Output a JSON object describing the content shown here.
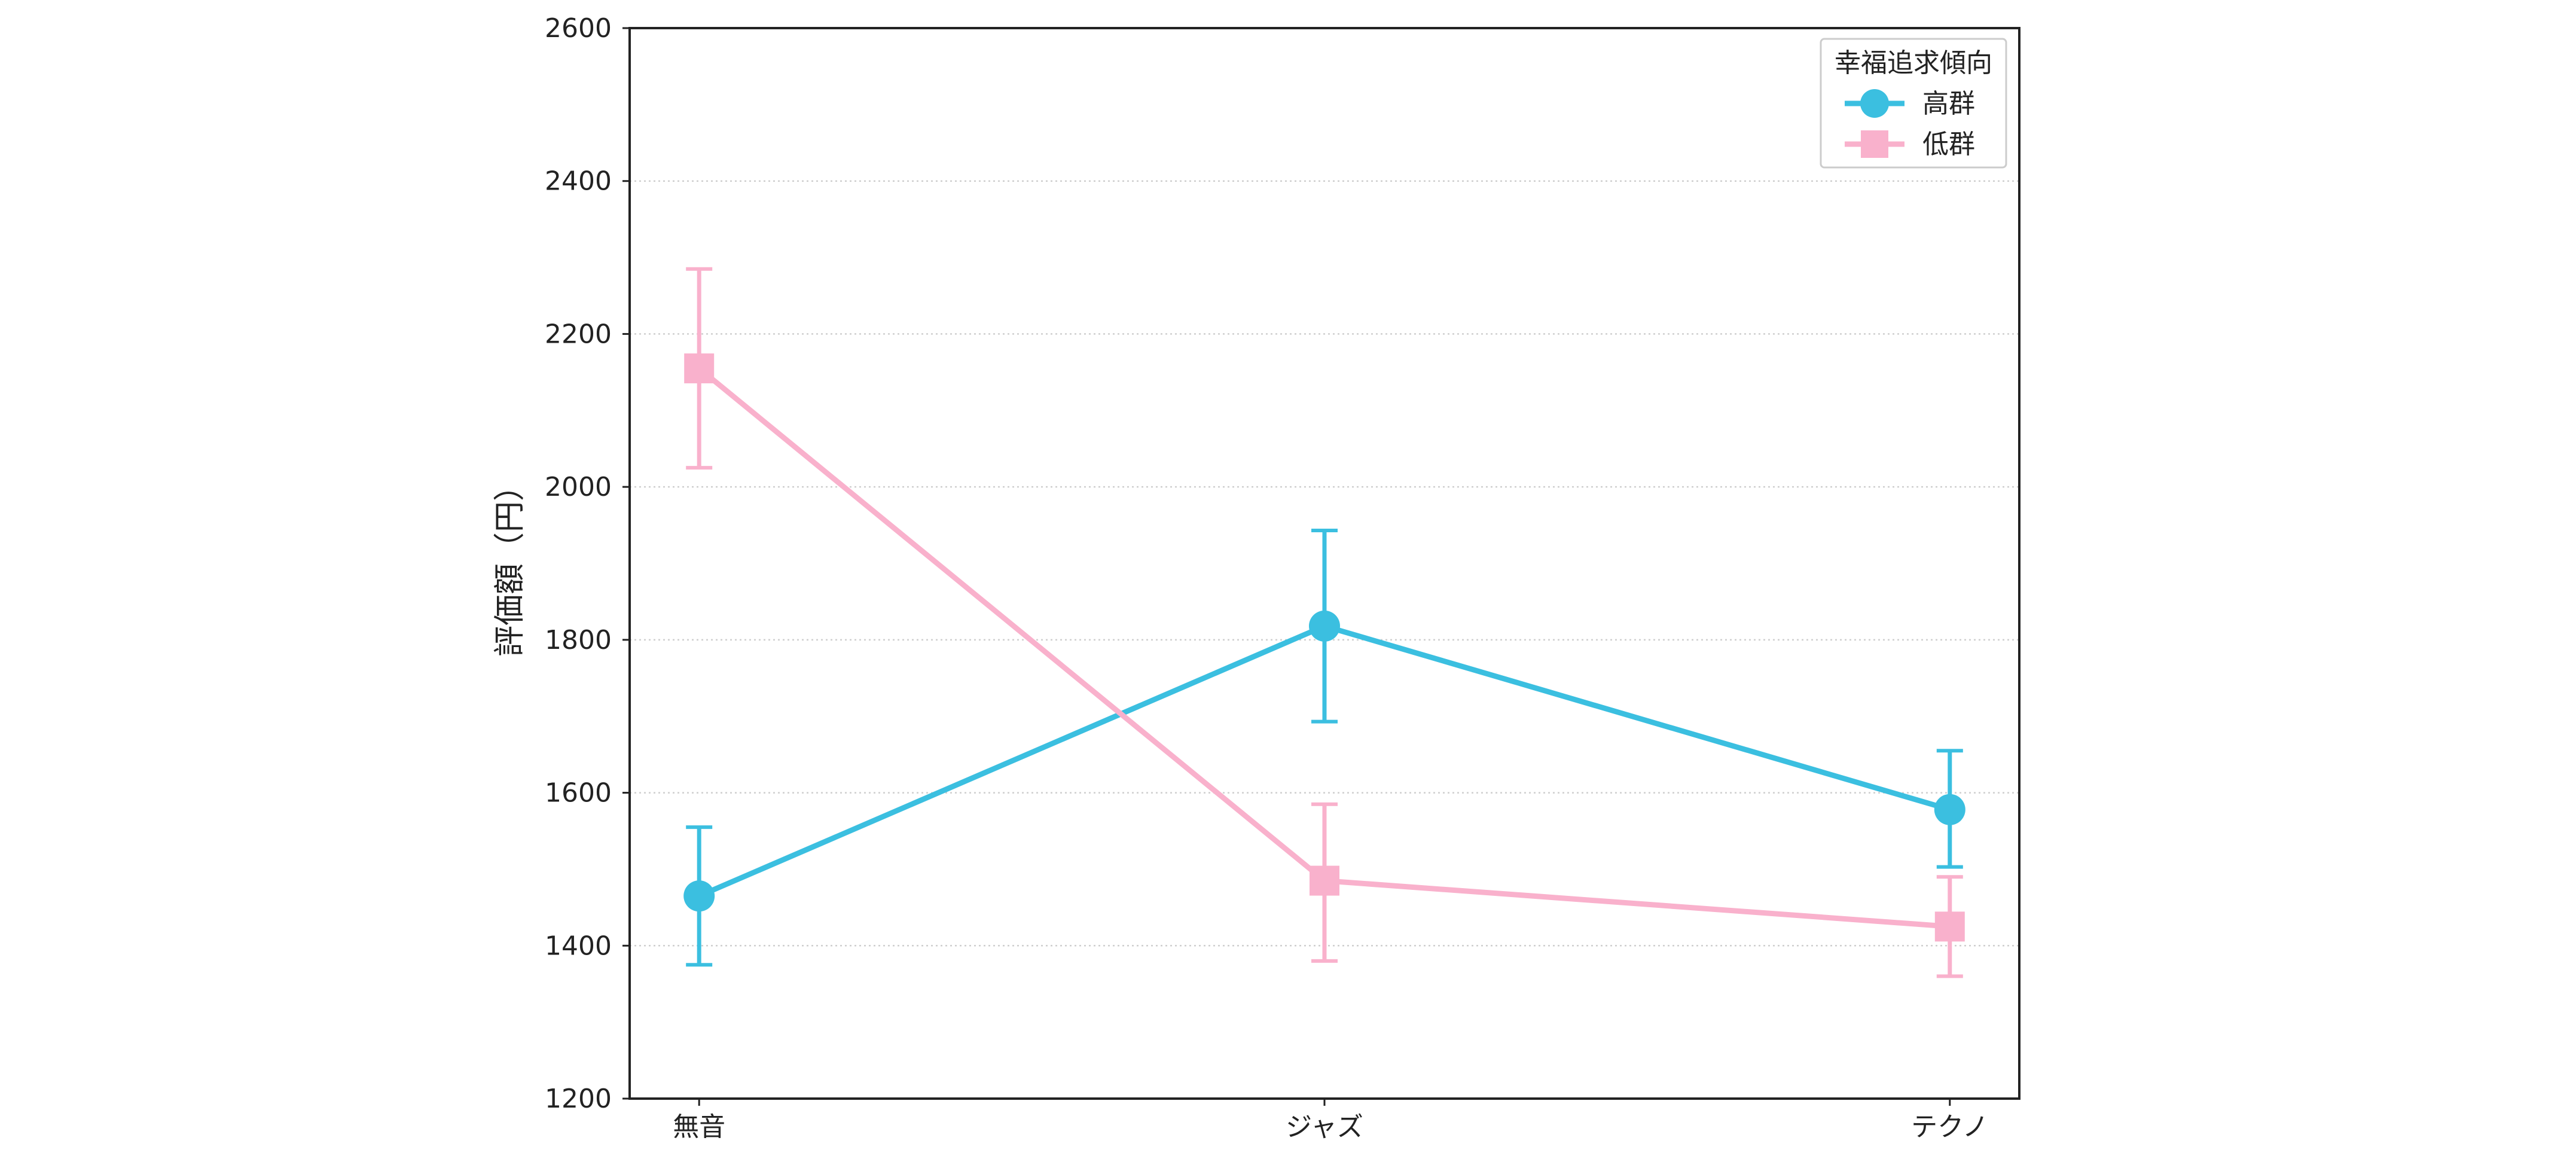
{
  "chart_data": {
    "type": "line",
    "title": "",
    "xlabel": "",
    "ylabel": "評価額（円）",
    "categories": [
      "無音",
      "ジャズ",
      "テクノ"
    ],
    "ylim": [
      1200,
      2600
    ],
    "yticks": [
      1200,
      1400,
      1600,
      1800,
      2000,
      2200,
      2400,
      2600
    ],
    "grid": "horizontal dotted",
    "legend": {
      "title": "幸福追求傾向",
      "placement": "top-right"
    },
    "series": [
      {
        "name": "高群",
        "color": "#3bbfe0",
        "marker": "circle",
        "values": [
          1465,
          1818,
          1578
        ],
        "error": [
          [
            1375,
            1555
          ],
          [
            1693,
            1943
          ],
          [
            1503,
            1655
          ]
        ]
      },
      {
        "name": "低群",
        "color": "#f9b1cc",
        "marker": "square",
        "values": [
          2155,
          1485,
          1425
        ],
        "error": [
          [
            2025,
            2285
          ],
          [
            1380,
            1585
          ],
          [
            1360,
            1490
          ]
        ]
      }
    ]
  }
}
